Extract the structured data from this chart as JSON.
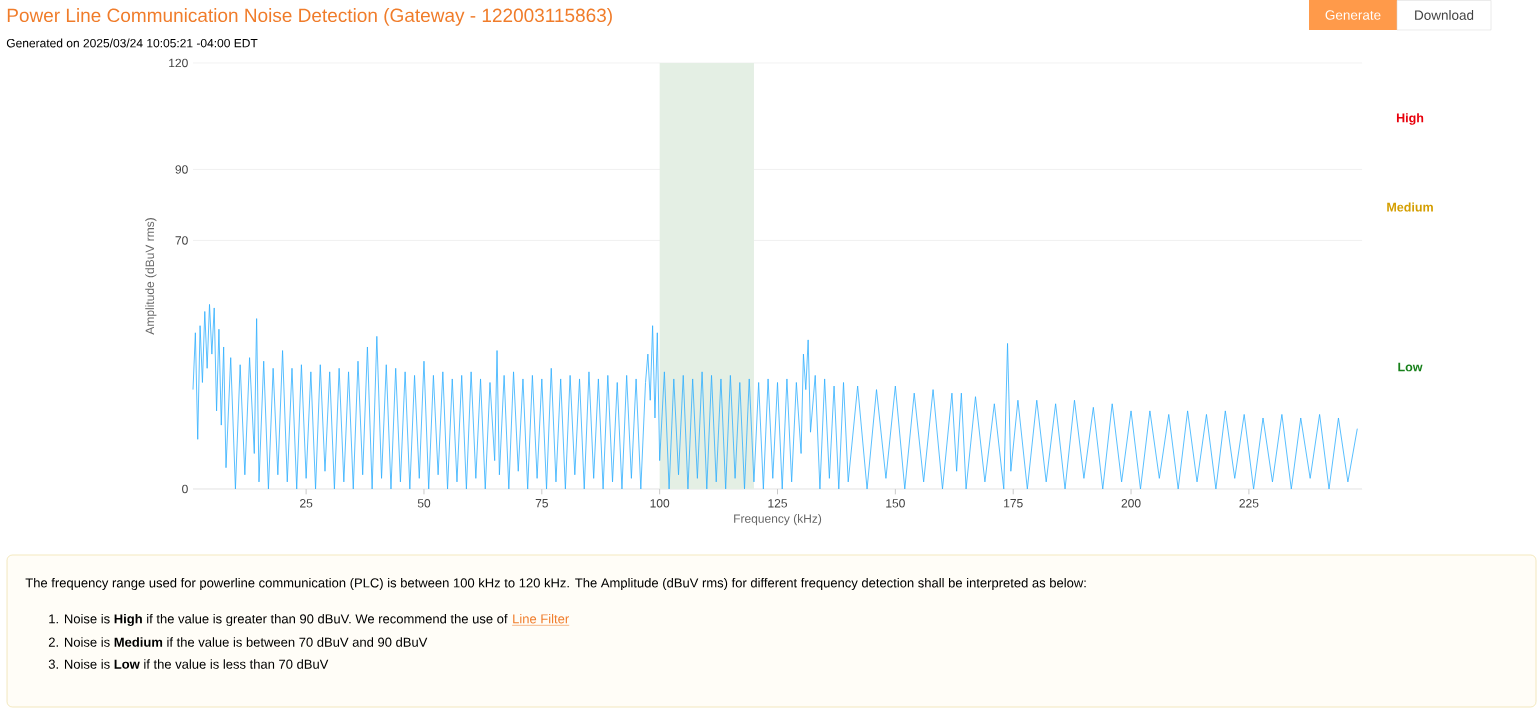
{
  "chart_data": {
    "type": "line",
    "title": "Power Line Communication Noise Detection (Gateway - 122003115863)",
    "subtitle": "Generated on 2025/03/24 10:05:21 -04:00 EDT",
    "xlabel": "Frequency (kHz)",
    "ylabel": "Amplitude (dBuV rms)",
    "xlim": [
      1,
      249
    ],
    "ylim": [
      0,
      120
    ],
    "xticks": [
      25,
      50,
      75,
      100,
      125,
      150,
      175,
      200,
      225
    ],
    "yticks": [
      0,
      70,
      90,
      120
    ],
    "grid": "y",
    "marker": "none",
    "line_style": "solid",
    "bands": [
      {
        "axis": "x",
        "from": 100,
        "to": 120,
        "color": "#e4efe4"
      }
    ],
    "annotations": [
      "High",
      "Medium",
      "Low",
      "Generate",
      "Download",
      "The frequency range used for powerline communication (PLC) is between 100 kHz to 120 kHz. The Amplitude (dBuV rms) for different frequency detection shall be interpreted as below:",
      "1. Noise is **High** if the value is greater than 90 dBuV. We recommend the use of",
      "Line Filter",
      "2. Noise is **Medium** if the value is between 70 dBuV and 90 dBuV",
      "3. Noise is **Low** if the value is less than 70 dBuV"
    ],
    "series": [
      {
        "color": "#2eaeff",
        "x": [
          1,
          1.5,
          2,
          2.5,
          3,
          3.5,
          4,
          4.5,
          5,
          5.5,
          6,
          6.5,
          7,
          7.5,
          8,
          9,
          10,
          11,
          12,
          13,
          14,
          14.5,
          15,
          16,
          17,
          18,
          19,
          20,
          21,
          22,
          23,
          24,
          25,
          26,
          27,
          28,
          29,
          30,
          31,
          32,
          33,
          34,
          35,
          36,
          37,
          38,
          39,
          40,
          41,
          42,
          43,
          44,
          45,
          46,
          47,
          48,
          49,
          50,
          51,
          52,
          53,
          54,
          55,
          56,
          57,
          58,
          59,
          60,
          61,
          62,
          63,
          64,
          65,
          65.5,
          66,
          67,
          68,
          69,
          70,
          71,
          72,
          73,
          74,
          75,
          76,
          77,
          78,
          79,
          80,
          81,
          82,
          83,
          84,
          85,
          86,
          87,
          88,
          89,
          90,
          91,
          92,
          93,
          94,
          95,
          96,
          97,
          97.5,
          98,
          98.5,
          99,
          99.5,
          100,
          101,
          102,
          103,
          104,
          105,
          106,
          107,
          108,
          109,
          110,
          111,
          112,
          113,
          114,
          115,
          116,
          117,
          118,
          119,
          120,
          121,
          122,
          123,
          124,
          125,
          126,
          127,
          128,
          129,
          130,
          130.5,
          131,
          131.5,
          132,
          133,
          134,
          135,
          136,
          137,
          138,
          139,
          140,
          142,
          144,
          146,
          148,
          150,
          152,
          154,
          156,
          158,
          160,
          162,
          163,
          164,
          165,
          167,
          169,
          171,
          173,
          173.8,
          174.5,
          176,
          178,
          180,
          182,
          184,
          186,
          188,
          190,
          192,
          194,
          196,
          198,
          200,
          202,
          204,
          206,
          208,
          210,
          212,
          214,
          216,
          218,
          220,
          222,
          224,
          226,
          228,
          230,
          232,
          234,
          236,
          238,
          240,
          242,
          244,
          246,
          248
        ],
        "values": [
          28,
          44,
          14,
          46,
          30,
          50,
          34,
          52,
          38,
          51,
          22,
          45,
          18,
          40,
          6,
          37,
          0,
          35,
          4,
          37,
          10,
          48,
          2,
          36,
          0,
          34,
          4,
          39,
          2,
          34,
          0,
          35,
          3,
          33,
          0,
          35,
          5,
          33,
          0,
          34,
          2,
          33,
          0,
          36,
          4,
          40,
          0,
          43,
          3,
          35,
          0,
          34,
          2,
          33,
          0,
          32,
          3,
          36,
          0,
          32,
          4,
          33,
          0,
          31,
          2,
          32,
          0,
          33,
          3,
          31,
          0,
          30,
          8,
          39,
          4,
          32,
          0,
          33,
          5,
          31,
          0,
          32,
          3,
          31,
          0,
          34,
          2,
          31,
          0,
          32,
          4,
          31,
          0,
          33,
          3,
          31,
          0,
          32,
          2,
          30,
          0,
          32,
          3,
          31,
          0,
          30,
          38,
          25,
          46,
          20,
          44,
          8,
          33,
          0,
          31,
          4,
          32,
          0,
          31,
          3,
          33,
          0,
          32,
          2,
          31,
          0,
          32,
          3,
          30,
          0,
          31,
          2,
          30,
          0,
          31,
          3,
          30,
          0,
          31,
          2,
          30,
          10,
          38,
          28,
          42,
          16,
          32,
          0,
          31,
          3,
          29,
          0,
          30,
          2,
          29,
          0,
          28,
          3,
          29,
          0,
          27,
          2,
          28,
          0,
          27,
          5,
          27,
          0,
          26,
          2,
          24,
          0,
          41,
          5,
          25,
          0,
          25,
          2,
          24,
          0,
          25,
          3,
          23,
          0,
          24,
          2,
          22,
          0,
          22,
          3,
          21,
          0,
          22,
          2,
          21,
          0,
          22,
          3,
          21,
          0,
          20,
          2,
          21,
          0,
          20,
          3,
          21,
          0,
          20,
          2,
          17
        ]
      }
    ]
  }
}
